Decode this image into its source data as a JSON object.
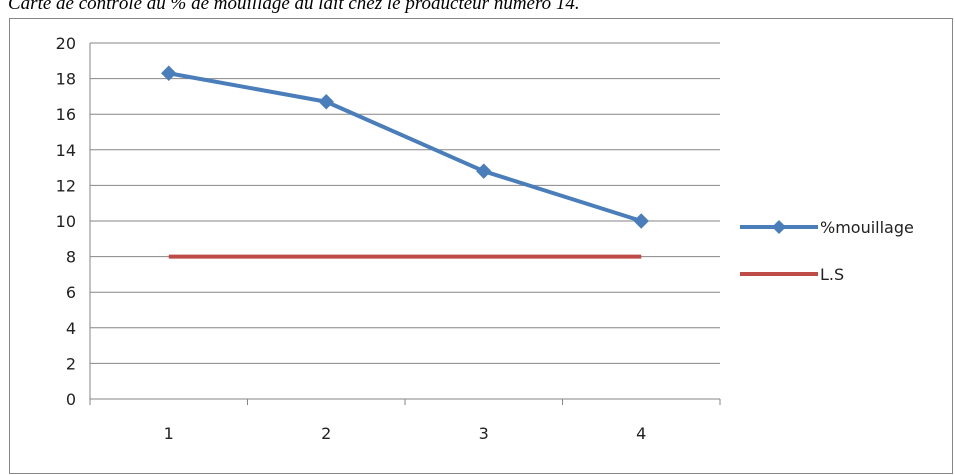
{
  "caption": "Carte de contrôle du % de mouillage du lait chez le producteur numéro 14.",
  "chart_data": {
    "type": "line",
    "title": "",
    "xlabel": "",
    "ylabel": "",
    "categories": [
      "1",
      "2",
      "3",
      "4"
    ],
    "ylim": [
      0,
      20
    ],
    "yticks": [
      0,
      2,
      4,
      6,
      8,
      10,
      12,
      14,
      16,
      18,
      20
    ],
    "grid": "horizontal",
    "legend": "right",
    "series": [
      {
        "name": "%mouillage",
        "values": [
          18.3,
          16.7,
          12.8,
          10.0
        ],
        "color": "#4a7ebb",
        "marker": "diamond"
      },
      {
        "name": "L.S",
        "values": [
          8,
          8,
          8,
          8
        ],
        "color": "#be4b48",
        "marker": "none"
      }
    ]
  }
}
